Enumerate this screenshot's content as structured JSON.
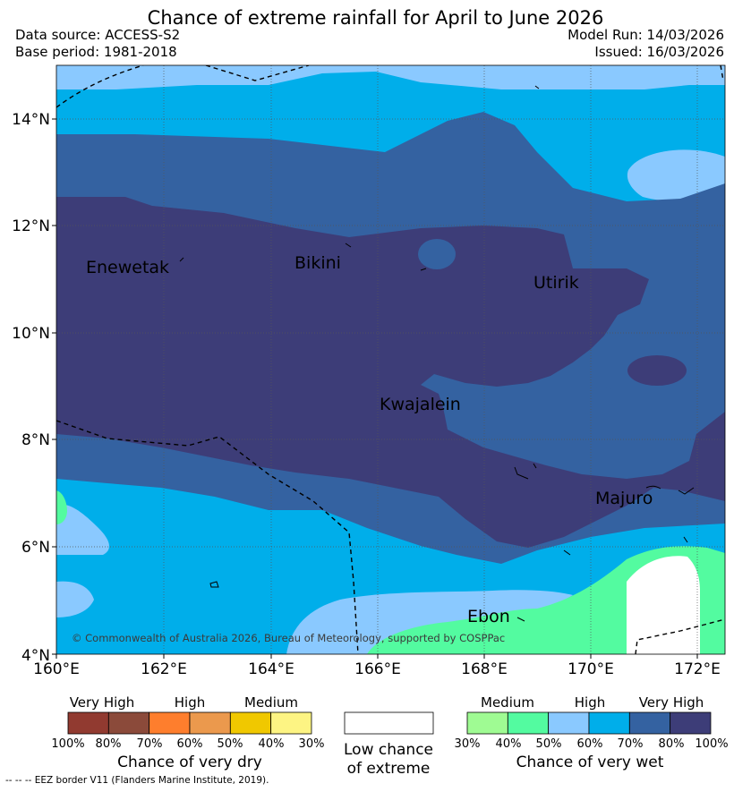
{
  "header": {
    "title": "Chance of extreme rainfall for April to June 2026",
    "data_source": "Data source: ACCESS-S2",
    "base_period": "Base period: 1981-2018",
    "model_run": "Model Run: 14/03/2026",
    "issued": "Issued: 16/03/2026"
  },
  "map": {
    "lat_labels": [
      "4°N",
      "6°N",
      "8°N",
      "10°N",
      "12°N",
      "14°N"
    ],
    "lon_labels": [
      "160°E",
      "162°E",
      "164°E",
      "166°E",
      "168°E",
      "170°E",
      "172°E"
    ],
    "places": [
      "Enewetak",
      "Bikini",
      "Utirik",
      "Kwajalein",
      "Majuro",
      "Ebon"
    ],
    "copyright": "© Commonwealth of Australia 2026, Bureau of Meteorology, supported by COSPPac",
    "colors": {
      "ocean_deep": "#3d3d78",
      "dark_blue": "#3462a1",
      "blue": "#00aeea",
      "light_blue": "#8ac9ff",
      "green": "#53fba0",
      "pale_green": "#9ffb93",
      "white": "#ffffff"
    }
  },
  "legend": {
    "dry": {
      "headers": [
        "Very High",
        "High",
        "Medium"
      ],
      "ticks": [
        "100%",
        "80%",
        "70%",
        "60%",
        "50%",
        "40%",
        "30%"
      ],
      "colors": [
        "#913a30",
        "#8b4a3a",
        "#fe7e2d",
        "#eb994d",
        "#f0c800",
        "#fdf483"
      ],
      "caption": "Chance of very dry"
    },
    "neutral": {
      "line1": "Low chance",
      "line2": "of extreme"
    },
    "wet": {
      "headers": [
        "Medium",
        "High",
        "Very High"
      ],
      "ticks": [
        "30%",
        "40%",
        "50%",
        "60%",
        "70%",
        "80%",
        "100%"
      ],
      "colors": [
        "#9ffb93",
        "#53fba0",
        "#8ac9ff",
        "#00aeea",
        "#3462a1",
        "#3d3d78"
      ],
      "caption": "Chance of very wet"
    }
  },
  "footnote": "-- -- -- EEZ border V11 (Flanders Marine Institute, 2019)."
}
